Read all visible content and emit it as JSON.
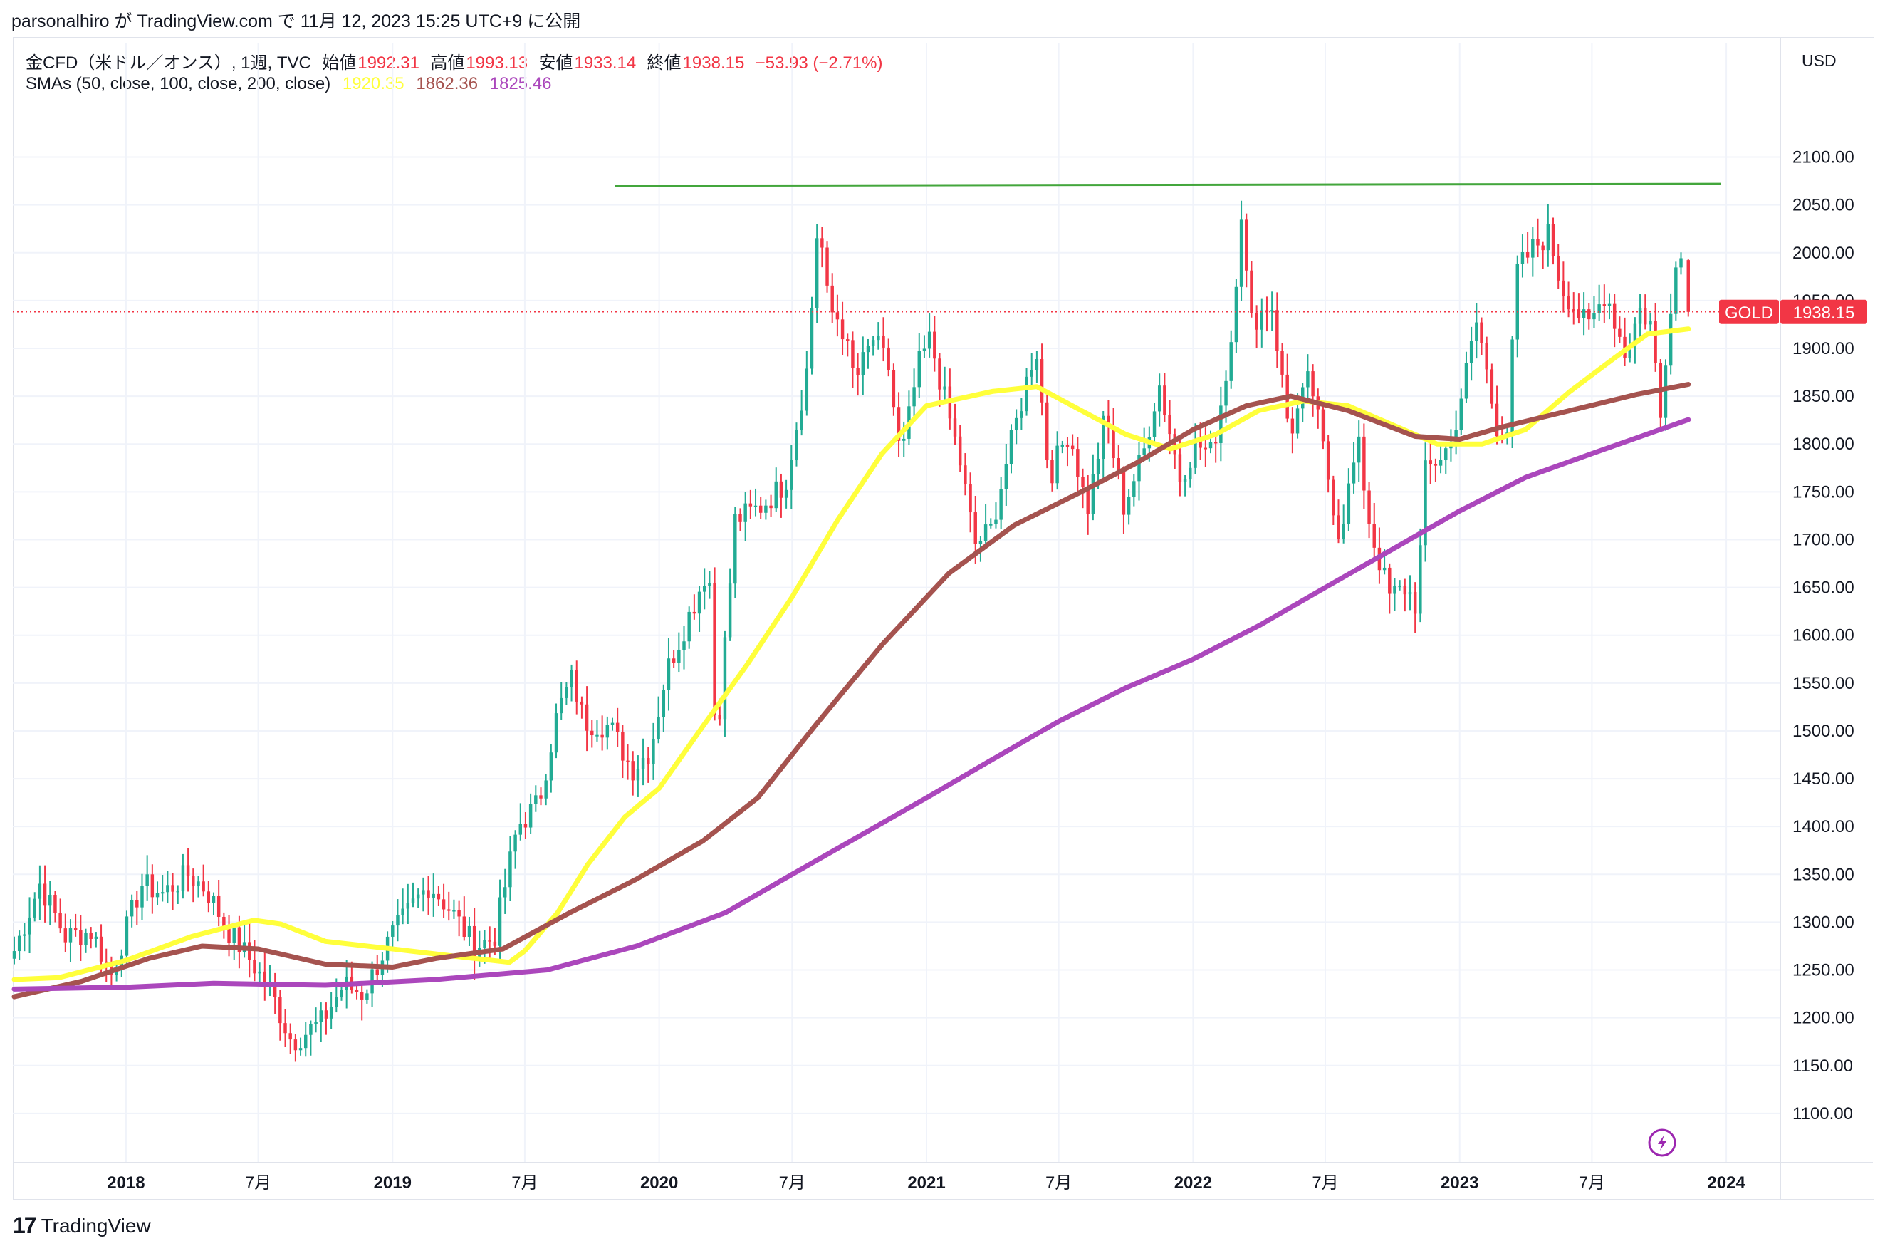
{
  "publication": "parsonalhiro が TradingView.com で 11月 12, 2023 15:25 UTC+9 に公開",
  "header": {
    "symbol_label": "金CFD（米ドル／オンス）, 1週, TVC",
    "open_label": "始値",
    "open_value": "1992.31",
    "high_label": "高値",
    "high_value": "1993.13",
    "low_label": "安値",
    "low_value": "1933.14",
    "close_label": "終値",
    "close_value": "1938.15",
    "change": "−53.93 (−2.71%)",
    "sma_label": "SMAs (50, close, 100, close, 200, close)",
    "sma50_value": "1920.35",
    "sma100_value": "1862.36",
    "sma200_value": "1825.46"
  },
  "currency": "USD",
  "price_tag": {
    "symbol": "GOLD",
    "value": "1938.15"
  },
  "footer": {
    "logo_mark": "17",
    "brand": "TradingView"
  },
  "icons": {
    "flash": "lightning-icon",
    "logo": "tradingview-logo-icon"
  },
  "colors": {
    "up": "#22ab94",
    "down": "#f23645",
    "sma50": "#ffff3b",
    "sma100": "#a5534f",
    "sma200": "#ab47bc",
    "resistance": "#43a63c",
    "grid": "#f0f3fa",
    "current_line": "#f23645"
  },
  "chart_data": {
    "type": "candlestick",
    "timeframe": "1W",
    "ylim": [
      1050,
      2160
    ],
    "xlim": [
      "2017-08-01",
      "2024-03-15"
    ],
    "y_ticks": [
      "1100.00",
      "1150.00",
      "1200.00",
      "1250.00",
      "1300.00",
      "1350.00",
      "1400.00",
      "1450.00",
      "1500.00",
      "1550.00",
      "1600.00",
      "1650.00",
      "1700.00",
      "1750.00",
      "1800.00",
      "1850.00",
      "1900.00",
      "1950.00",
      "2000.00",
      "2050.00",
      "2100.00"
    ],
    "x_ticks": [
      {
        "label": "2018",
        "date": "2018-01-01",
        "bold": true
      },
      {
        "label": "7月",
        "date": "2018-07-01",
        "bold": false
      },
      {
        "label": "2019",
        "date": "2019-01-01",
        "bold": true
      },
      {
        "label": "7月",
        "date": "2019-07-01",
        "bold": false
      },
      {
        "label": "2020",
        "date": "2020-01-01",
        "bold": true
      },
      {
        "label": "7月",
        "date": "2020-07-01",
        "bold": false
      },
      {
        "label": "2021",
        "date": "2021-01-01",
        "bold": true
      },
      {
        "label": "7月",
        "date": "2021-07-01",
        "bold": false
      },
      {
        "label": "2022",
        "date": "2022-01-01",
        "bold": true
      },
      {
        "label": "7月",
        "date": "2022-07-01",
        "bold": false
      },
      {
        "label": "2023",
        "date": "2023-01-01",
        "bold": true
      },
      {
        "label": "7月",
        "date": "2023-07-01",
        "bold": false
      },
      {
        "label": "2024",
        "date": "2024-01-01",
        "bold": true
      }
    ],
    "close_anchors": [
      [
        "2017-08-01",
        1270
      ],
      [
        "2017-09-05",
        1340
      ],
      [
        "2017-10-10",
        1285
      ],
      [
        "2017-11-15",
        1290
      ],
      [
        "2017-12-12",
        1245
      ],
      [
        "2018-01-22",
        1340
      ],
      [
        "2018-02-20",
        1330
      ],
      [
        "2018-03-27",
        1350
      ],
      [
        "2018-04-20",
        1335
      ],
      [
        "2018-05-22",
        1290
      ],
      [
        "2018-06-25",
        1255
      ],
      [
        "2018-07-20",
        1225
      ],
      [
        "2018-08-16",
        1175
      ],
      [
        "2018-09-25",
        1195
      ],
      [
        "2018-10-26",
        1235
      ],
      [
        "2018-11-22",
        1225
      ],
      [
        "2018-12-28",
        1282
      ],
      [
        "2019-01-31",
        1320
      ],
      [
        "2019-02-20",
        1340
      ],
      [
        "2019-03-22",
        1312
      ],
      [
        "2019-04-23",
        1275
      ],
      [
        "2019-05-20",
        1283
      ],
      [
        "2019-06-21",
        1400
      ],
      [
        "2019-07-20",
        1425
      ],
      [
        "2019-08-15",
        1520
      ],
      [
        "2019-09-04",
        1555
      ],
      [
        "2019-09-20",
        1510
      ],
      [
        "2019-10-25",
        1505
      ],
      [
        "2019-11-25",
        1460
      ],
      [
        "2019-12-20",
        1480
      ],
      [
        "2020-01-10",
        1560
      ],
      [
        "2020-02-21",
        1640
      ],
      [
        "2020-03-09",
        1675
      ],
      [
        "2020-03-19",
        1480
      ],
      [
        "2020-04-14",
        1720
      ],
      [
        "2020-05-20",
        1735
      ],
      [
        "2020-06-22",
        1760
      ],
      [
        "2020-07-22",
        1880
      ],
      [
        "2020-08-06",
        2040
      ],
      [
        "2020-08-20",
        1940
      ],
      [
        "2020-09-05",
        1930
      ],
      [
        "2020-09-25",
        1865
      ],
      [
        "2020-10-20",
        1910
      ],
      [
        "2020-11-10",
        1880
      ],
      [
        "2020-11-27",
        1780
      ],
      [
        "2020-12-20",
        1880
      ],
      [
        "2021-01-06",
        1910
      ],
      [
        "2021-01-25",
        1850
      ],
      [
        "2021-02-15",
        1785
      ],
      [
        "2021-03-08",
        1695
      ],
      [
        "2021-03-30",
        1710
      ],
      [
        "2021-04-20",
        1780
      ],
      [
        "2021-05-31",
        1905
      ],
      [
        "2021-06-18",
        1765
      ],
      [
        "2021-07-15",
        1815
      ],
      [
        "2021-08-09",
        1730
      ],
      [
        "2021-09-03",
        1830
      ],
      [
        "2021-09-28",
        1735
      ],
      [
        "2021-10-25",
        1790
      ],
      [
        "2021-11-15",
        1865
      ],
      [
        "2021-12-14",
        1765
      ],
      [
        "2022-01-05",
        1800
      ],
      [
        "2022-01-27",
        1790
      ],
      [
        "2022-02-21",
        1900
      ],
      [
        "2022-03-08",
        2045
      ],
      [
        "2022-03-20",
        1925
      ],
      [
        "2022-04-18",
        1950
      ],
      [
        "2022-05-13",
        1810
      ],
      [
        "2022-06-10",
        1870
      ],
      [
        "2022-07-05",
        1765
      ],
      [
        "2022-07-20",
        1705
      ],
      [
        "2022-08-15",
        1800
      ],
      [
        "2022-09-01",
        1710
      ],
      [
        "2022-09-27",
        1640
      ],
      [
        "2022-10-20",
        1650
      ],
      [
        "2022-11-03",
        1630
      ],
      [
        "2022-11-15",
        1770
      ],
      [
        "2022-12-20",
        1800
      ],
      [
        "2023-01-25",
        1930
      ],
      [
        "2023-02-20",
        1820
      ],
      [
        "2023-03-08",
        1815
      ],
      [
        "2023-03-20",
        1980
      ],
      [
        "2023-04-12",
        2005
      ],
      [
        "2023-05-03",
        2020
      ],
      [
        "2023-05-20",
        1965
      ],
      [
        "2023-06-02",
        1950
      ],
      [
        "2023-06-26",
        1920
      ],
      [
        "2023-07-20",
        1960
      ],
      [
        "2023-08-15",
        1895
      ],
      [
        "2023-09-05",
        1940
      ],
      [
        "2023-09-20",
        1925
      ],
      [
        "2023-10-04",
        1820
      ],
      [
        "2023-10-13",
        1930
      ],
      [
        "2023-10-27",
        2000
      ],
      [
        "2023-11-03",
        1992
      ],
      [
        "2023-11-10",
        1938.15
      ]
    ],
    "sma_anchors": {
      "SMA50": [
        [
          "2017-08-01",
          1240
        ],
        [
          "2017-10-01",
          1242
        ],
        [
          "2018-01-01",
          1260
        ],
        [
          "2018-04-01",
          1285
        ],
        [
          "2018-06-25",
          1302
        ],
        [
          "2018-08-01",
          1298
        ],
        [
          "2018-10-01",
          1280
        ],
        [
          "2019-01-01",
          1272
        ],
        [
          "2019-03-20",
          1265
        ],
        [
          "2019-06-10",
          1258
        ],
        [
          "2019-07-01",
          1270
        ],
        [
          "2019-08-15",
          1310
        ],
        [
          "2019-09-25",
          1360
        ],
        [
          "2019-11-15",
          1410
        ],
        [
          "2020-01-01",
          1440
        ],
        [
          "2020-03-01",
          1505
        ],
        [
          "2020-05-01",
          1570
        ],
        [
          "2020-07-01",
          1640
        ],
        [
          "2020-09-01",
          1720
        ],
        [
          "2020-11-01",
          1790
        ],
        [
          "2021-01-01",
          1840
        ],
        [
          "2021-04-01",
          1855
        ],
        [
          "2021-06-01",
          1860
        ],
        [
          "2021-08-01",
          1835
        ],
        [
          "2021-10-01",
          1810
        ],
        [
          "2021-12-01",
          1795
        ],
        [
          "2022-02-01",
          1810
        ],
        [
          "2022-04-01",
          1835
        ],
        [
          "2022-06-01",
          1845
        ],
        [
          "2022-08-01",
          1840
        ],
        [
          "2022-10-01",
          1820
        ],
        [
          "2022-12-01",
          1800
        ],
        [
          "2023-02-01",
          1800
        ],
        [
          "2023-04-01",
          1815
        ],
        [
          "2023-06-01",
          1855
        ],
        [
          "2023-08-01",
          1890
        ],
        [
          "2023-09-15",
          1915
        ],
        [
          "2023-11-10",
          1920.35
        ]
      ],
      "SMA100": [
        [
          "2017-08-01",
          1222
        ],
        [
          "2017-11-01",
          1238
        ],
        [
          "2018-02-01",
          1262
        ],
        [
          "2018-04-15",
          1275
        ],
        [
          "2018-07-01",
          1272
        ],
        [
          "2018-10-01",
          1256
        ],
        [
          "2019-01-01",
          1253
        ],
        [
          "2019-03-01",
          1262
        ],
        [
          "2019-06-01",
          1272
        ],
        [
          "2019-09-01",
          1310
        ],
        [
          "2019-12-01",
          1345
        ],
        [
          "2020-03-01",
          1385
        ],
        [
          "2020-05-15",
          1430
        ],
        [
          "2020-08-01",
          1505
        ],
        [
          "2020-11-01",
          1590
        ],
        [
          "2021-02-01",
          1665
        ],
        [
          "2021-05-01",
          1715
        ],
        [
          "2021-08-01",
          1750
        ],
        [
          "2021-10-15",
          1780
        ],
        [
          "2022-01-01",
          1815
        ],
        [
          "2022-03-15",
          1840
        ],
        [
          "2022-05-15",
          1850
        ],
        [
          "2022-08-01",
          1835
        ],
        [
          "2022-11-01",
          1808
        ],
        [
          "2023-01-01",
          1805
        ],
        [
          "2023-03-01",
          1818
        ],
        [
          "2023-06-01",
          1835
        ],
        [
          "2023-09-01",
          1852
        ],
        [
          "2023-11-10",
          1862.36
        ]
      ],
      "SMA200": [
        [
          "2017-08-01",
          1230
        ],
        [
          "2018-01-01",
          1232
        ],
        [
          "2018-05-01",
          1236
        ],
        [
          "2018-10-01",
          1234
        ],
        [
          "2019-03-01",
          1240
        ],
        [
          "2019-08-01",
          1250
        ],
        [
          "2019-12-01",
          1275
        ],
        [
          "2020-04-01",
          1310
        ],
        [
          "2020-07-01",
          1350
        ],
        [
          "2020-10-01",
          1390
        ],
        [
          "2021-01-01",
          1430
        ],
        [
          "2021-04-01",
          1470
        ],
        [
          "2021-07-01",
          1510
        ],
        [
          "2021-10-01",
          1545
        ],
        [
          "2022-01-01",
          1575
        ],
        [
          "2022-04-01",
          1610
        ],
        [
          "2022-07-01",
          1650
        ],
        [
          "2022-10-01",
          1690
        ],
        [
          "2023-01-01",
          1730
        ],
        [
          "2023-04-01",
          1765
        ],
        [
          "2023-07-01",
          1790
        ],
        [
          "2023-11-10",
          1825.46
        ]
      ]
    },
    "resistance_line": {
      "from": [
        "2019-11-01",
        2070
      ],
      "to": [
        "2023-12-25",
        2072
      ]
    }
  }
}
